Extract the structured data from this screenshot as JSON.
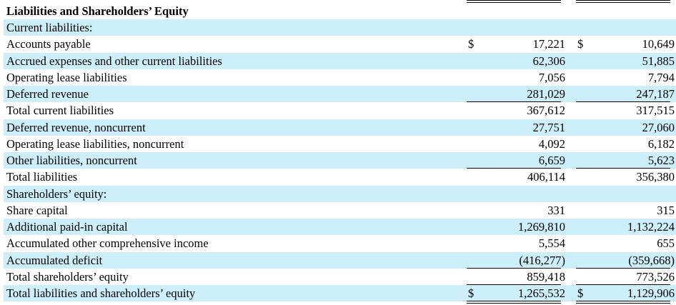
{
  "title": "Liabilities and Shareholders’ Equity",
  "rows": [
    {
      "label": "Current liabilities:"
    },
    {
      "label": "Accounts payable",
      "symbols": [
        "$",
        "$"
      ],
      "values": [
        "17,221",
        "10,649"
      ]
    },
    {
      "label": "Accrued expenses and other current liabilities",
      "values": [
        "62,306",
        "51,885"
      ]
    },
    {
      "label": "Operating lease liabilities",
      "values": [
        "7,056",
        "7,794"
      ]
    },
    {
      "label": "Deferred revenue",
      "values": [
        "281,029",
        "247,187"
      ]
    },
    {
      "label": "Total current liabilities",
      "values": [
        "367,612",
        "317,515"
      ]
    },
    {
      "label": "Deferred revenue, noncurrent",
      "values": [
        "27,751",
        "27,060"
      ]
    },
    {
      "label": "Operating lease liabilities, noncurrent",
      "values": [
        "4,092",
        "6,182"
      ]
    },
    {
      "label": "Other liabilities, noncurrent",
      "values": [
        "6,659",
        "5,623"
      ]
    },
    {
      "label": "Total liabilities",
      "values": [
        "406,114",
        "356,380"
      ]
    },
    {
      "label": "Shareholders’ equity:"
    },
    {
      "label": "Share capital",
      "values": [
        "331",
        "315"
      ]
    },
    {
      "label": "Additional paid-in capital",
      "values": [
        "1,269,810",
        "1,132,224"
      ]
    },
    {
      "label": "Accumulated other comprehensive income",
      "values": [
        "5,554",
        "655"
      ]
    },
    {
      "label": "Accumulated deficit",
      "values": [
        "(416,277)",
        "(359,668)"
      ]
    },
    {
      "label": "Total shareholders’ equity",
      "values": [
        "859,418",
        "773,526"
      ]
    },
    {
      "label": "Total liabilities and shareholders’ equity",
      "symbols": [
        "$",
        "$"
      ],
      "values": [
        "1,265,532",
        "1,129,906"
      ]
    }
  ]
}
